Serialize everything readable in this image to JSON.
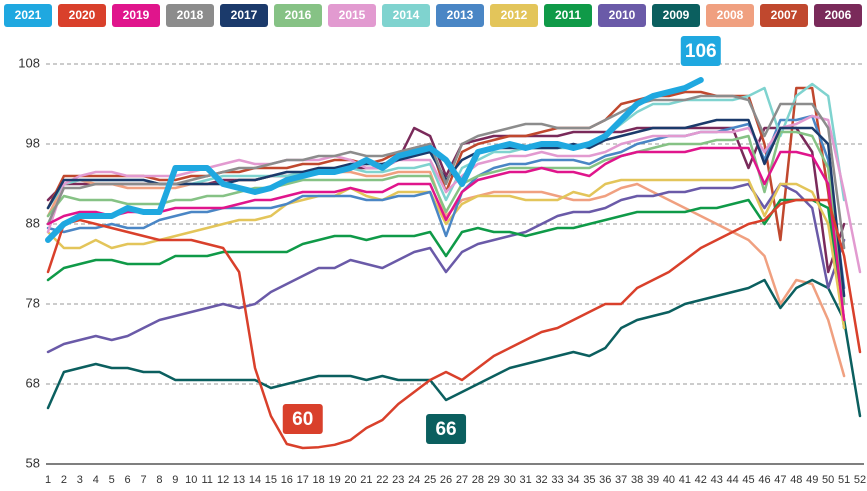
{
  "chart_data": {
    "type": "line",
    "categories": [
      "1",
      "2",
      "3",
      "4",
      "5",
      "6",
      "7",
      "8",
      "9",
      "10",
      "11",
      "12",
      "13",
      "14",
      "15",
      "16",
      "17",
      "18",
      "19",
      "20",
      "21",
      "22",
      "23",
      "24",
      "25",
      "26",
      "27",
      "28",
      "29",
      "30",
      "31",
      "32",
      "33",
      "34",
      "35",
      "36",
      "37",
      "38",
      "39",
      "40",
      "41",
      "42",
      "43",
      "44",
      "45",
      "46",
      "47",
      "48",
      "49",
      "50",
      "51",
      "52"
    ],
    "ylim": [
      58,
      108
    ],
    "yticks": [
      58,
      68,
      78,
      88,
      98,
      108
    ],
    "grid": true,
    "series": [
      {
        "name": "2021",
        "color": "#1fa8e0",
        "values": [
          86,
          88,
          89,
          89,
          89,
          90,
          89.5,
          89.5,
          95,
          95,
          95,
          93,
          92.5,
          92,
          92.5,
          93.5,
          94,
          94.5,
          94.5,
          95,
          96,
          95,
          96.5,
          97,
          97.5,
          96,
          93,
          97,
          97.5,
          98,
          97.5,
          98,
          98,
          97.5,
          98,
          99,
          101,
          103,
          104,
          104.5,
          105,
          106,
          null,
          null,
          null,
          null,
          null,
          null,
          null,
          null,
          null,
          null
        ]
      },
      {
        "name": "2020",
        "color": "#d9402b",
        "values": [
          82,
          88,
          88.5,
          88,
          87.5,
          87,
          86.5,
          86,
          86,
          86,
          85.5,
          85,
          82,
          70,
          64,
          60.5,
          60,
          60.1,
          60.4,
          61,
          62.5,
          63.5,
          65.5,
          67,
          68.5,
          69.5,
          68.5,
          70,
          71.5,
          72.5,
          73.5,
          74.5,
          75,
          76,
          77,
          78,
          78,
          80,
          81,
          82,
          83.5,
          85,
          86,
          87,
          88,
          88.5,
          90.5,
          91,
          91,
          91,
          84,
          72
        ]
      },
      {
        "name": "2019",
        "color": "#e0158c",
        "values": [
          88,
          89,
          89.5,
          89.5,
          89,
          89.5,
          89.5,
          89.5,
          90,
          90,
          90,
          90,
          90.5,
          91,
          91,
          91.5,
          92,
          92,
          92,
          92.5,
          92,
          92,
          93,
          93,
          93,
          88.5,
          92,
          93.5,
          94,
          94.5,
          94.5,
          95,
          94.5,
          94.5,
          94,
          95.5,
          96.5,
          97,
          97,
          97,
          97,
          97.5,
          97.5,
          97.5,
          97.5,
          93,
          97,
          97,
          96.5,
          93,
          76,
          null
        ]
      },
      {
        "name": "2018",
        "color": "#8c8c8c",
        "values": [
          88,
          92.5,
          92.5,
          93,
          93,
          93,
          93,
          93,
          93,
          93.5,
          94,
          94.5,
          95,
          95,
          95.5,
          96,
          96,
          96.5,
          96.5,
          97,
          96.5,
          96.5,
          97,
          97.5,
          98,
          93,
          98,
          99,
          99.5,
          100,
          100.5,
          100.5,
          100,
          100,
          100,
          101,
          102,
          103,
          103.5,
          103.5,
          103.5,
          104,
          104,
          104,
          103.5,
          99,
          103,
          103,
          103,
          100,
          85,
          null
        ]
      },
      {
        "name": "2017",
        "color": "#1b3a6b",
        "values": [
          90,
          93.5,
          93.5,
          93.5,
          93.5,
          93.5,
          93.5,
          93,
          93,
          93,
          93,
          93,
          93.5,
          93.5,
          94,
          94.5,
          94.5,
          95,
          95,
          95.5,
          95.5,
          95.5,
          96,
          96.5,
          97,
          93.5,
          96,
          97,
          97.5,
          97.5,
          97.5,
          97.5,
          97.5,
          98,
          97.5,
          98.5,
          99,
          99.5,
          100,
          100,
          100,
          100.5,
          101,
          101,
          101,
          95.5,
          100,
          100,
          100,
          98,
          79,
          null
        ]
      },
      {
        "name": "2016",
        "color": "#86c285",
        "values": [
          89,
          91.5,
          91,
          91,
          91,
          90.5,
          90.5,
          90.5,
          91,
          91,
          91.5,
          91.5,
          92,
          92.5,
          92.5,
          93,
          93.5,
          93.5,
          93.5,
          93.5,
          93.5,
          93.5,
          94,
          94,
          94,
          89.5,
          93,
          94,
          94.5,
          95,
          95,
          95,
          95,
          95,
          95,
          96,
          96.5,
          97,
          97.5,
          98,
          98,
          98,
          98.5,
          98.5,
          99,
          92,
          99.5,
          99.5,
          99,
          95,
          78,
          null
        ]
      },
      {
        "name": "2015",
        "color": "#e29ad0",
        "values": [
          87,
          93,
          94,
          94.5,
          94.5,
          94,
          94,
          94,
          94,
          94.5,
          95,
          95.5,
          96,
          95.5,
          95.5,
          96,
          96,
          96,
          96.5,
          96,
          95,
          95,
          96,
          96,
          96,
          92,
          94,
          95.5,
          96,
          96.5,
          96.5,
          97,
          96.5,
          96.5,
          96.5,
          97,
          98,
          98.5,
          99,
          99,
          99,
          99.5,
          99.5,
          99.5,
          100,
          97,
          100,
          100.5,
          101.5,
          101,
          92,
          82
        ]
      },
      {
        "name": "2014",
        "color": "#7fd3cf",
        "values": [
          90,
          93,
          93.5,
          93.5,
          93.5,
          93.5,
          93.5,
          93,
          93,
          93,
          93.5,
          94,
          94,
          94,
          94,
          94,
          94.5,
          94.5,
          95,
          95,
          94.5,
          94.5,
          95,
          95,
          95.5,
          91,
          95,
          96,
          97,
          97,
          97.5,
          97.5,
          97.5,
          97.5,
          98,
          99,
          100.5,
          102,
          103,
          103,
          103.5,
          103.5,
          103.5,
          103.5,
          104,
          105,
          99,
          104,
          105.5,
          104,
          91,
          null
        ]
      },
      {
        "name": "2013",
        "color": "#4a86c5",
        "values": [
          87.5,
          87,
          87.5,
          87.5,
          88,
          87.5,
          87.5,
          88.5,
          89,
          89.5,
          89.5,
          90,
          90,
          90,
          90,
          90.5,
          91.5,
          91.5,
          91.5,
          91.5,
          91,
          91,
          91.5,
          91.5,
          92,
          86.5,
          92,
          94,
          95,
          95.5,
          95.5,
          96,
          96,
          96,
          95.5,
          96.5,
          97,
          98,
          98.5,
          99,
          99,
          99.5,
          99.5,
          100,
          100.5,
          96,
          101,
          101,
          101.5,
          96,
          80,
          null
        ]
      },
      {
        "name": "2012",
        "color": "#e3c55a",
        "values": [
          87,
          85,
          85,
          86,
          85,
          85.5,
          85.5,
          86,
          86.5,
          87,
          87.5,
          88,
          88.5,
          88.5,
          89,
          90.5,
          91,
          91.5,
          91.5,
          92.5,
          91.5,
          91,
          92,
          92,
          92,
          88,
          90.5,
          91.5,
          91.5,
          91.5,
          91,
          91,
          91,
          92,
          91.5,
          93,
          93.5,
          93.5,
          93.5,
          93.5,
          93.5,
          93.5,
          93.5,
          93.5,
          93.5,
          89,
          93,
          93,
          92,
          88,
          75,
          null
        ]
      },
      {
        "name": "2011",
        "color": "#0f9a48",
        "values": [
          81,
          82.5,
          83,
          83.5,
          83.5,
          83,
          83,
          83,
          84,
          84,
          84,
          84.5,
          84.5,
          84.5,
          84.5,
          84.5,
          85.5,
          86,
          86.5,
          86.5,
          86,
          86.5,
          86.5,
          86.5,
          87,
          84,
          87,
          87.5,
          87,
          87,
          86.5,
          87,
          87.5,
          87.5,
          88,
          88.5,
          89,
          89.5,
          89.5,
          89.5,
          89.5,
          90,
          90,
          90.5,
          91,
          88,
          91,
          91,
          91,
          90,
          75,
          null
        ]
      },
      {
        "name": "2010",
        "color": "#6a5aa8",
        "values": [
          72,
          73,
          73.5,
          74,
          73.5,
          74,
          75,
          76,
          76.5,
          77,
          77.5,
          78,
          77.5,
          78,
          79.5,
          80.5,
          81.5,
          82.5,
          82.5,
          83.5,
          83,
          82.5,
          83.5,
          84.5,
          85,
          82,
          84.5,
          85.5,
          86,
          86.5,
          87,
          88,
          89,
          89.5,
          89.5,
          90,
          91,
          91.5,
          91.5,
          92,
          92,
          92.5,
          92.5,
          92.5,
          93,
          90,
          93,
          92,
          90,
          80,
          86,
          null
        ]
      },
      {
        "name": "2009",
        "color": "#0b5f5f",
        "values": [
          65,
          69.5,
          70,
          70.5,
          70,
          70,
          69.5,
          69.5,
          68.5,
          68.5,
          68.5,
          68.5,
          68.5,
          68.5,
          67.5,
          68,
          68.5,
          69,
          69,
          69,
          68.5,
          69,
          68.5,
          68.5,
          68.5,
          66,
          67,
          68,
          69,
          70,
          70.5,
          71,
          71.5,
          72,
          71.5,
          72.5,
          75,
          76,
          76.5,
          77,
          78,
          78.5,
          79,
          79.5,
          80,
          81,
          77.5,
          80,
          81,
          80,
          76,
          64
        ]
      },
      {
        "name": "2008",
        "color": "#f0a080",
        "values": [
          89,
          93,
          93.5,
          93,
          93,
          92.5,
          92.5,
          92.5,
          92.5,
          93,
          93,
          93,
          93.5,
          93.5,
          94,
          94,
          94,
          94.5,
          94.5,
          94.5,
          94,
          94,
          94.5,
          94.5,
          94.5,
          89,
          91,
          91.5,
          92,
          92,
          92,
          92,
          91.5,
          91,
          91,
          91.5,
          92.5,
          93,
          92,
          91,
          90,
          89,
          88,
          87,
          86,
          84,
          78,
          81,
          80.5,
          76,
          69,
          null
        ]
      },
      {
        "name": "2007",
        "color": "#c0482e",
        "values": [
          90,
          94,
          94,
          94,
          94,
          94,
          94,
          93.5,
          93.5,
          94,
          94,
          94.5,
          94.5,
          95,
          95,
          95,
          95.5,
          95.5,
          96,
          96,
          95.5,
          96,
          97,
          97.5,
          98,
          92,
          97,
          98,
          98.5,
          99,
          99,
          99.5,
          100,
          100,
          100,
          101,
          103,
          103.5,
          104,
          104,
          104.5,
          104.5,
          104,
          104,
          104,
          98,
          86,
          105,
          105,
          92,
          76,
          null
        ]
      },
      {
        "name": "2006",
        "color": "#7a2a5a",
        "values": [
          91,
          93,
          93,
          93,
          93,
          93,
          93,
          93,
          93,
          93,
          93,
          93.5,
          93.5,
          93.5,
          94,
          94,
          94,
          94.5,
          94.5,
          95,
          95,
          95,
          96,
          100,
          99,
          94,
          98,
          98.5,
          99,
          99,
          99,
          99,
          99,
          99.5,
          99.5,
          99.5,
          99.5,
          100,
          100,
          100,
          100,
          100,
          100,
          100,
          95,
          100,
          100,
          100,
          97,
          82,
          88,
          null
        ]
      }
    ]
  }
}
